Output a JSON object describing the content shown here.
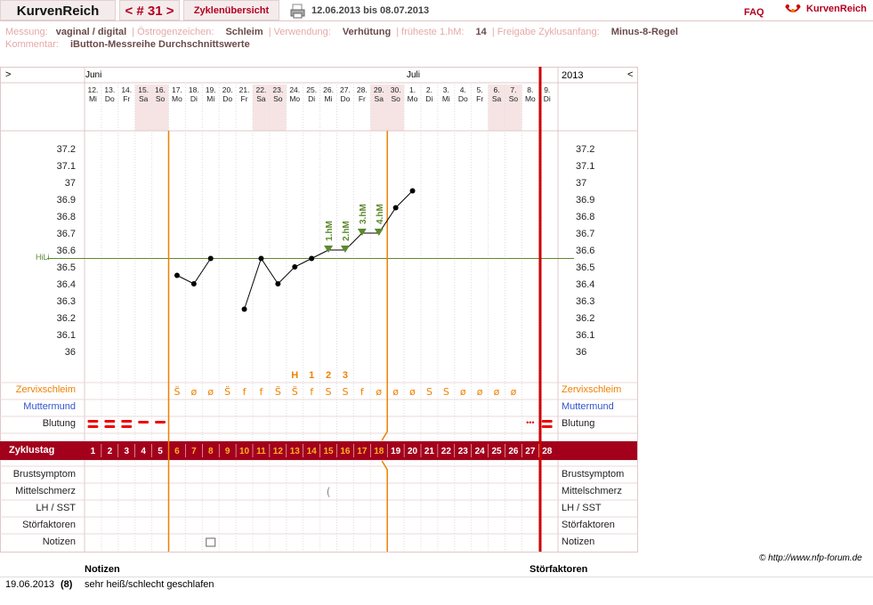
{
  "header": {
    "app_title": "KurvenReich",
    "cycle_label": "< # 31 >",
    "overview_label": "Zyklenübersicht",
    "date_range": "12.06.2013 bis 08.07.2013",
    "faq_label": "FAQ",
    "brand_label": "KurvenReich"
  },
  "meta": {
    "messung_label": "Messung:",
    "messung_value": "vaginal / digital",
    "oestrogen_label": "Östrogenzeichen:",
    "oestrogen_value": "Schleim",
    "verwendung_label": "Verwendung:",
    "verwendung_value": "Verhütung",
    "fruehest_label": "früheste 1.hM:",
    "fruehest_value": "14",
    "freigabe_label": "Freigabe Zyklusanfang:",
    "freigabe_value": "Minus-8-Regel",
    "kommentar_label": "Kommentar:",
    "kommentar_value": "iButton-Messreihe Durchschnittswerte"
  },
  "calendar": {
    "left_arrow": ">",
    "right_arrow": "<",
    "year": "2013",
    "month_june": "Juni",
    "month_july": "Juli",
    "days": [
      {
        "d": "12.",
        "w": "Mi"
      },
      {
        "d": "13.",
        "w": "Do"
      },
      {
        "d": "14.",
        "w": "Fr"
      },
      {
        "d": "15.",
        "w": "Sa"
      },
      {
        "d": "16.",
        "w": "So"
      },
      {
        "d": "17.",
        "w": "Mo"
      },
      {
        "d": "18.",
        "w": "Di"
      },
      {
        "d": "19.",
        "w": "Mi"
      },
      {
        "d": "20.",
        "w": "Do"
      },
      {
        "d": "21.",
        "w": "Fr"
      },
      {
        "d": "22.",
        "w": "Sa"
      },
      {
        "d": "23.",
        "w": "So"
      },
      {
        "d": "24.",
        "w": "Mo"
      },
      {
        "d": "25.",
        "w": "Di"
      },
      {
        "d": "26.",
        "w": "Mi"
      },
      {
        "d": "27.",
        "w": "Do"
      },
      {
        "d": "28.",
        "w": "Fr"
      },
      {
        "d": "29.",
        "w": "Sa"
      },
      {
        "d": "30.",
        "w": "So"
      },
      {
        "d": "1.",
        "w": "Mo"
      },
      {
        "d": "2.",
        "w": "Di"
      },
      {
        "d": "3.",
        "w": "Mi"
      },
      {
        "d": "4.",
        "w": "Do"
      },
      {
        "d": "5.",
        "w": "Fr"
      },
      {
        "d": "6.",
        "w": "Sa"
      },
      {
        "d": "7.",
        "w": "So"
      },
      {
        "d": "8.",
        "w": "Mo"
      },
      {
        "d": "9.",
        "w": "Di"
      }
    ]
  },
  "chart_data": {
    "type": "line",
    "y_ticks": [
      "37.2",
      "37.1",
      "37",
      "36.9",
      "36.8",
      "36.7",
      "36.6",
      "36.5",
      "36.4",
      "36.3",
      "36.2",
      "36.1",
      "36"
    ],
    "ylim": [
      36.0,
      37.2
    ],
    "hili_label": "HiLi",
    "hili_value": 36.55,
    "series": [
      {
        "values": [
          null,
          null,
          null,
          null,
          null,
          36.45,
          36.4,
          36.55,
          null,
          36.25,
          36.55,
          36.4,
          36.5,
          36.55,
          36.6,
          36.6,
          36.7,
          36.7,
          36.85,
          36.95,
          null,
          null,
          null,
          null,
          null,
          null,
          null
        ]
      }
    ],
    "hm_labels": [
      {
        "cycle_day": 15,
        "text": "1.hM"
      },
      {
        "cycle_day": 16,
        "text": "2.hM"
      },
      {
        "cycle_day": 17,
        "text": "3.hM"
      },
      {
        "cycle_day": 18,
        "text": "4.hM"
      }
    ],
    "marker_labels": [
      {
        "cycle_day": 13,
        "text": "H"
      },
      {
        "cycle_day": 14,
        "text": "1"
      },
      {
        "cycle_day": 15,
        "text": "2"
      },
      {
        "cycle_day": 16,
        "text": "3"
      }
    ]
  },
  "rows": {
    "zervix_label": "Zervixschleim",
    "muttermund_label": "Muttermund",
    "blutung_label": "Blutung",
    "zyklustag_label": "Zyklustag",
    "brust_label": "Brustsymptom",
    "mittel_label": "Mittelschmerz",
    "lh_label": "LH / SST",
    "stoer_label": "Störfaktoren",
    "notizen_label": "Notizen",
    "zervix": [
      "",
      "",
      "",
      "",
      "",
      "S̈",
      "ø",
      "ø",
      "S̈",
      "f",
      "f",
      "S̈",
      "S̈",
      "f",
      "S",
      "S",
      "f",
      "ø",
      "ø",
      "ø",
      "S",
      "S",
      "ø",
      "ø",
      "ø",
      "ø",
      "",
      ""
    ],
    "cycle_days": [
      "1",
      "2",
      "3",
      "4",
      "5",
      "6",
      "7",
      "8",
      "9",
      "10",
      "11",
      "12",
      "13",
      "14",
      "15",
      "16",
      "17",
      "18",
      "19",
      "20",
      "21",
      "22",
      "23",
      "24",
      "25",
      "26",
      "27",
      "28"
    ]
  },
  "footer": {
    "copyright": "© http://www.nfp-forum.de",
    "notes_header": "Notizen",
    "stoer_header": "Störfaktoren",
    "note_date": "19.06.2013",
    "note_day": "(8)",
    "note_text": "sehr heiß/schlecht geschlafen"
  },
  "colors": {
    "accent": "#a3001c",
    "orange": "#f08000",
    "green": "#5c8a2e",
    "pink": "#f6e4e4"
  }
}
